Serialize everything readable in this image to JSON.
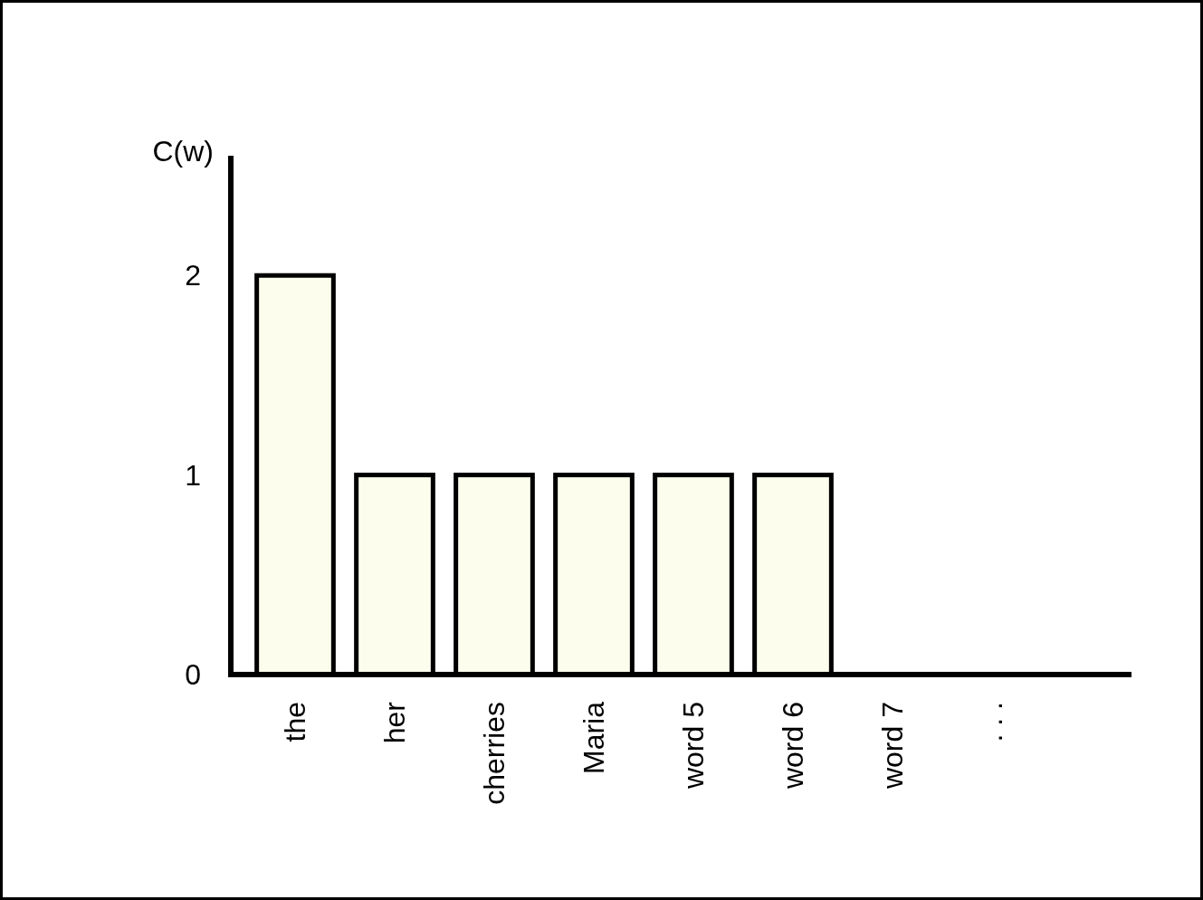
{
  "chart_data": {
    "type": "bar",
    "ylabel": "C(w)",
    "categories": [
      "the",
      "her",
      "cherries",
      "Maria",
      "word 5",
      "word 6",
      "word 7",
      ". . ."
    ],
    "values": [
      2,
      1,
      1,
      1,
      1,
      1,
      0,
      null
    ],
    "color": "#fdfdee",
    "ylim": [
      0,
      2.6
    ],
    "yticks": [
      0,
      1,
      2
    ],
    "grid": false
  }
}
